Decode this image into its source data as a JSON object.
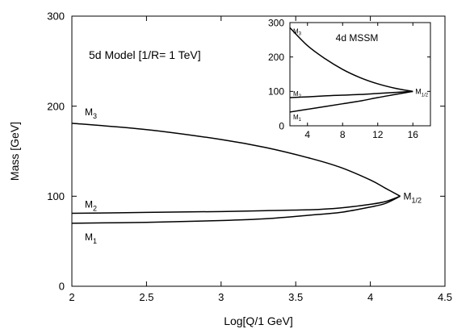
{
  "chart_data": [
    {
      "type": "line",
      "title": "",
      "annotation": "5d Model [1/R= 1 TeV]",
      "xlabel": "Log[Q/1 GeV]",
      "ylabel": "Mass [GeV]",
      "xlim": [
        2,
        4.5
      ],
      "ylim": [
        0,
        300
      ],
      "xticks": [
        "2",
        "2.5",
        "3",
        "3.5",
        "4",
        "4.5"
      ],
      "yticks": [
        "0",
        "100",
        "200",
        "300"
      ],
      "grid": false,
      "legend": "none",
      "x": [
        2.0,
        2.5,
        3.0,
        3.3,
        3.6,
        3.8,
        4.0,
        4.1,
        4.2
      ],
      "series": [
        {
          "name": "M3",
          "values": [
            181,
            174,
            163,
            154,
            142,
            132,
            118,
            109,
            100
          ]
        },
        {
          "name": "M2",
          "values": [
            81,
            82,
            83,
            84,
            85,
            87,
            91,
            94,
            100
          ]
        },
        {
          "name": "M1",
          "values": [
            70,
            71,
            73,
            75,
            79,
            82,
            88,
            92,
            100
          ]
        }
      ],
      "endpoint_label": "M1/2"
    },
    {
      "type": "line",
      "title": "4d MSSM",
      "xlim": [
        2,
        18
      ],
      "ylim": [
        0,
        300
      ],
      "xticks": [
        "4",
        "8",
        "12",
        "16"
      ],
      "yticks": [
        "0",
        "100",
        "200",
        "300"
      ],
      "grid": false,
      "legend": "none",
      "x": [
        2,
        4,
        6,
        8,
        10,
        12,
        14,
        16
      ],
      "series": [
        {
          "name": "M3",
          "values": [
            285,
            233,
            195,
            164,
            140,
            122,
            109,
            100
          ]
        },
        {
          "name": "M2",
          "values": [
            82,
            84,
            87,
            89,
            91,
            94,
            97,
            100
          ]
        },
        {
          "name": "M1",
          "values": [
            40,
            48,
            56,
            64,
            72,
            82,
            91,
            100
          ]
        }
      ],
      "endpoint_label": "M1/2"
    }
  ]
}
